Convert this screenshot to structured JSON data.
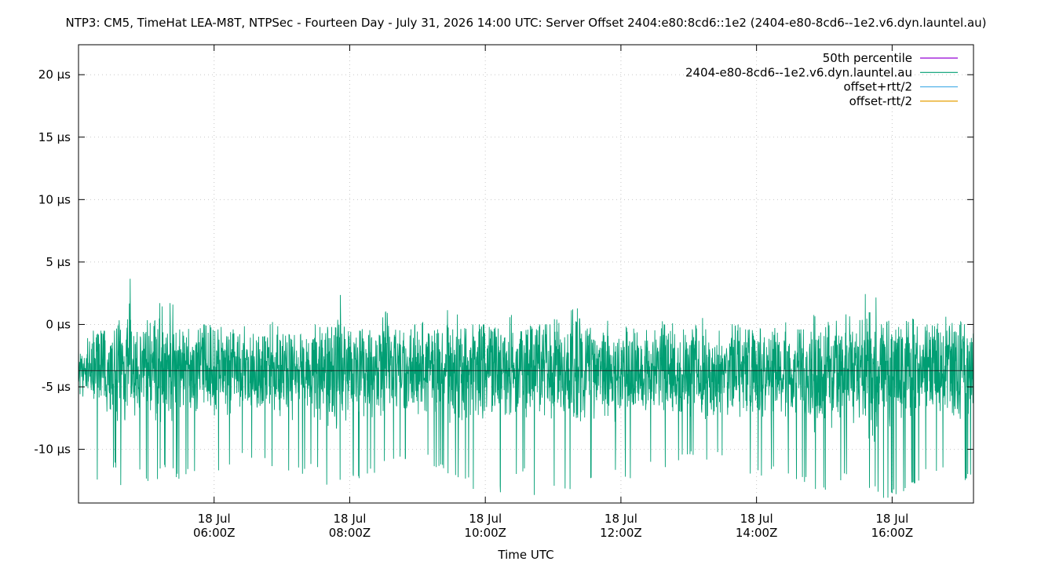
{
  "chart_data": {
    "type": "line",
    "title": "NTP3: CM5, TimeHat LEA-M8T, NTPSec - Fourteen Day - July 31, 2026 14:00 UTC: Server Offset 2404:e80:8cd6::1e2 (2404-e80-8cd6--1e2.v6.dyn.launtel.au)",
    "xlabel": "Time UTC",
    "ylabel": "",
    "y_unit": "µs",
    "ylim": [
      -14.3,
      22.4
    ],
    "xlim": [
      "2026-07-18T04:00:00Z",
      "2026-07-18T17:12:00Z"
    ],
    "grid": true,
    "legend_position": "top-right",
    "y_ticks": [
      {
        "value": 20,
        "label": "20 µs"
      },
      {
        "value": 15,
        "label": "15 µs"
      },
      {
        "value": 10,
        "label": "10 µs"
      },
      {
        "value": 5,
        "label": "5 µs"
      },
      {
        "value": 0,
        "label": "0 µs"
      },
      {
        "value": -5,
        "label": "-5 µs"
      },
      {
        "value": -10,
        "label": "-10 µs"
      }
    ],
    "x_ticks": [
      {
        "value": "2026-07-18T06:00:00Z",
        "date": "18 Jul",
        "time": "06:00Z"
      },
      {
        "value": "2026-07-18T08:00:00Z",
        "date": "18 Jul",
        "time": "08:00Z"
      },
      {
        "value": "2026-07-18T10:00:00Z",
        "date": "18 Jul",
        "time": "10:00Z"
      },
      {
        "value": "2026-07-18T12:00:00Z",
        "date": "18 Jul",
        "time": "12:00Z"
      },
      {
        "value": "2026-07-18T14:00:00Z",
        "date": "18 Jul",
        "time": "14:00Z"
      },
      {
        "value": "2026-07-18T16:00:00Z",
        "date": "18 Jul",
        "time": "16:00Z"
      }
    ],
    "series": [
      {
        "name": "50th percentile",
        "color": "#9400d3",
        "kind": "constant",
        "value": -3.7
      },
      {
        "name": "2404-e80-8cd6--1e2.v6.dyn.launtel.au",
        "color": "#009e73",
        "kind": "offset",
        "x": [
          "2026-07-18T04:00:00Z",
          "2026-07-18T04:12:00Z",
          "2026-07-18T04:24:00Z",
          "2026-07-18T04:36:00Z",
          "2026-07-18T04:48:00Z",
          "2026-07-18T05:00:00Z",
          "2026-07-18T05:12:00Z",
          "2026-07-18T05:24:00Z",
          "2026-07-18T05:36:00Z",
          "2026-07-18T05:48:00Z",
          "2026-07-18T06:00:00Z",
          "2026-07-18T06:12:00Z",
          "2026-07-18T06:24:00Z",
          "2026-07-18T06:36:00Z",
          "2026-07-18T06:48:00Z",
          "2026-07-18T07:00:00Z",
          "2026-07-18T07:12:00Z",
          "2026-07-18T07:24:00Z",
          "2026-07-18T07:36:00Z",
          "2026-07-18T07:48:00Z",
          "2026-07-18T08:00:00Z",
          "2026-07-18T08:12:00Z",
          "2026-07-18T08:24:00Z",
          "2026-07-18T08:36:00Z",
          "2026-07-18T08:48:00Z",
          "2026-07-18T09:00:00Z",
          "2026-07-18T09:12:00Z",
          "2026-07-18T09:24:00Z",
          "2026-07-18T09:36:00Z",
          "2026-07-18T09:48:00Z",
          "2026-07-18T10:00:00Z",
          "2026-07-18T10:12:00Z",
          "2026-07-18T10:24:00Z",
          "2026-07-18T10:36:00Z",
          "2026-07-18T10:48:00Z",
          "2026-07-18T11:00:00Z",
          "2026-07-18T11:12:00Z",
          "2026-07-18T11:24:00Z",
          "2026-07-18T11:36:00Z",
          "2026-07-18T11:48:00Z",
          "2026-07-18T12:00:00Z",
          "2026-07-18T12:12:00Z",
          "2026-07-18T12:24:00Z",
          "2026-07-18T12:36:00Z",
          "2026-07-18T12:48:00Z",
          "2026-07-18T13:00:00Z",
          "2026-07-18T13:12:00Z",
          "2026-07-18T13:24:00Z",
          "2026-07-18T13:36:00Z",
          "2026-07-18T13:48:00Z",
          "2026-07-18T14:00:00Z",
          "2026-07-18T14:12:00Z",
          "2026-07-18T14:24:00Z",
          "2026-07-18T14:36:00Z",
          "2026-07-18T14:48:00Z",
          "2026-07-18T15:00:00Z",
          "2026-07-18T15:12:00Z",
          "2026-07-18T15:24:00Z",
          "2026-07-18T15:36:00Z",
          "2026-07-18T15:48:00Z",
          "2026-07-18T16:00:00Z",
          "2026-07-18T16:12:00Z",
          "2026-07-18T16:24:00Z",
          "2026-07-18T16:36:00Z",
          "2026-07-18T16:48:00Z",
          "2026-07-18T17:00:00Z",
          "2026-07-18T17:12:00Z"
        ],
        "y_high": [
          -1.0,
          -0.5,
          0.0,
          4.0,
          -0.6,
          0.5,
          1.8,
          -0.4,
          -0.3,
          0.0,
          -0.2,
          -0.4,
          0.1,
          0.0,
          0.3,
          -0.5,
          -0.8,
          0.0,
          -0.2,
          2.7,
          -0.3,
          0.0,
          1.2,
          -0.3,
          0.0,
          0.2,
          -0.4,
          1.2,
          -0.3,
          0.0,
          -0.2,
          1.0,
          -0.5,
          -0.1,
          0.0,
          0.6,
          1.4,
          -0.2,
          -0.4,
          1.0,
          0.0,
          -0.3,
          -0.1,
          0.3,
          -0.4,
          0.0,
          0.6,
          -0.3,
          0.1,
          -0.4,
          0.0,
          -0.2,
          0.6,
          -0.4,
          0.8,
          0.3,
          1.0,
          0.4,
          4.2,
          0.3,
          -0.2,
          0.6,
          0.0,
          1.7,
          0.2,
          0.4,
          0.6
        ],
        "y_low": [
          -6.0,
          -12.5,
          -11.5,
          -13.0,
          -12.0,
          -12.8,
          -11.8,
          -12.5,
          -12.0,
          -11.5,
          -12.0,
          -11.5,
          -10.8,
          -11.2,
          -11.8,
          -12.2,
          -12.0,
          -11.5,
          -13.0,
          -12.8,
          -12.5,
          -12.0,
          -11.5,
          -10.8,
          -11.2,
          -10.5,
          -11.8,
          -12.2,
          -12.6,
          -13.2,
          -12.8,
          -13.5,
          -12.0,
          -13.8,
          -14.0,
          -13.5,
          -13.6,
          -12.8,
          -12.5,
          -12.0,
          -12.6,
          -12.0,
          -11.2,
          -11.8,
          -11.0,
          -10.5,
          -11.2,
          -10.8,
          -11.5,
          -12.0,
          -12.2,
          -11.8,
          -12.5,
          -12.8,
          -13.2,
          -13.8,
          -12.5,
          -12.0,
          -13.5,
          -14.0,
          -13.6,
          -12.8,
          -12.0,
          -11.8,
          -11.5,
          -12.5,
          -7.0
        ]
      },
      {
        "name": "offset+rtt/2",
        "color": "#56b4e9",
        "kind": "offset"
      },
      {
        "name": "offset-rtt/2",
        "color": "#e69f00",
        "kind": "offset"
      }
    ]
  }
}
